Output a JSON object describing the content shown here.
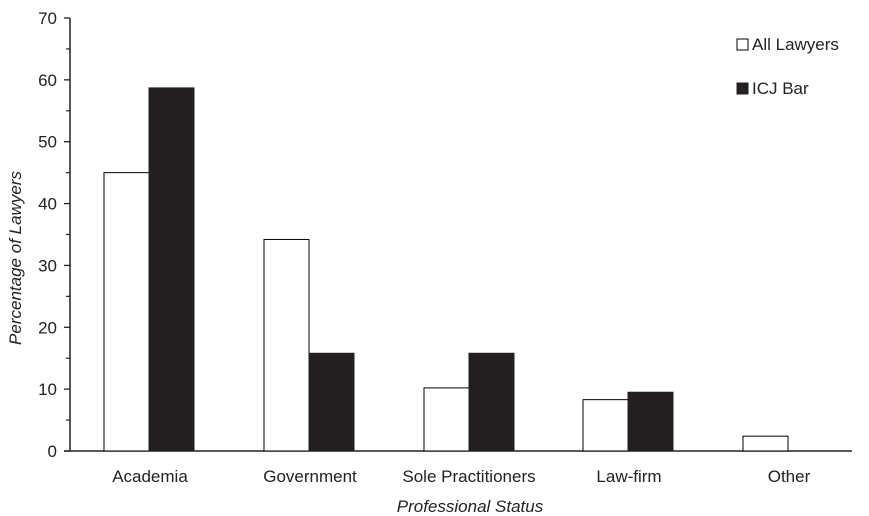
{
  "chart_data": {
    "type": "bar",
    "xlabel": "Professional Status",
    "ylabel": "Percentage of Lawyers",
    "ylim": [
      0,
      70
    ],
    "yticks": [
      0,
      10,
      20,
      30,
      40,
      50,
      60,
      70
    ],
    "categories": [
      "Academia",
      "Government",
      "Sole Practitioners",
      "Law-firm",
      "Other"
    ],
    "series": [
      {
        "name": "All Lawyers",
        "values": [
          45,
          34.2,
          10.2,
          8.3,
          2.4
        ],
        "color": "#ffffff",
        "stroke": "#000000"
      },
      {
        "name": "ICJ Bar",
        "values": [
          58.7,
          15.8,
          15.8,
          9.5,
          0
        ],
        "color": "#231f20",
        "stroke": "#231f20"
      }
    ],
    "legend_position": "top-right",
    "grid": false
  }
}
